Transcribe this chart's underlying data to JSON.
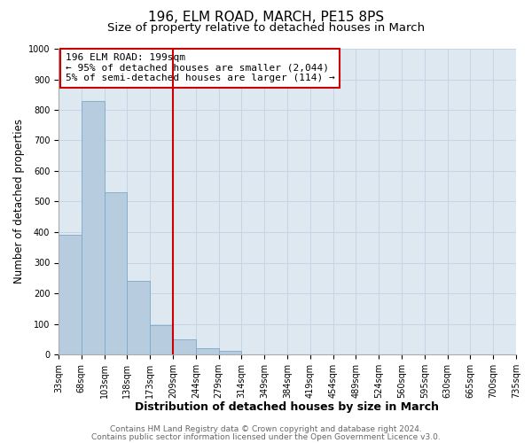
{
  "title": "196, ELM ROAD, MARCH, PE15 8PS",
  "subtitle": "Size of property relative to detached houses in March",
  "xlabel": "Distribution of detached houses by size in March",
  "ylabel": "Number of detached properties",
  "bar_values": [
    390,
    830,
    530,
    240,
    95,
    50,
    20,
    12,
    0,
    0,
    0,
    0,
    0,
    0,
    0,
    0,
    0,
    0,
    0,
    0
  ],
  "bin_labels": [
    "33sqm",
    "68sqm",
    "103sqm",
    "138sqm",
    "173sqm",
    "209sqm",
    "244sqm",
    "279sqm",
    "314sqm",
    "349sqm",
    "384sqm",
    "419sqm",
    "454sqm",
    "489sqm",
    "524sqm",
    "560sqm",
    "595sqm",
    "630sqm",
    "665sqm",
    "700sqm",
    "735sqm"
  ],
  "bar_color": "#b8ccdf",
  "bar_edge_color": "#7aaac8",
  "bar_width": 1.0,
  "vline_x": 5.0,
  "vline_color": "#cc0000",
  "annotation_line1": "196 ELM ROAD: 199sqm",
  "annotation_line2": "← 95% of detached houses are smaller (2,044)",
  "annotation_line3": "5% of semi-detached houses are larger (114) →",
  "box_edge_color": "#cc0000",
  "ylim": [
    0,
    1000
  ],
  "yticks": [
    0,
    100,
    200,
    300,
    400,
    500,
    600,
    700,
    800,
    900,
    1000
  ],
  "grid_color": "#c5d5e5",
  "bg_color": "#dde8f0",
  "footer_line1": "Contains HM Land Registry data © Crown copyright and database right 2024.",
  "footer_line2": "Contains public sector information licensed under the Open Government Licence v3.0.",
  "title_fontsize": 11,
  "subtitle_fontsize": 9.5,
  "xlabel_fontsize": 9,
  "ylabel_fontsize": 8.5,
  "tick_fontsize": 7,
  "annotation_fontsize": 8,
  "footer_fontsize": 6.5
}
